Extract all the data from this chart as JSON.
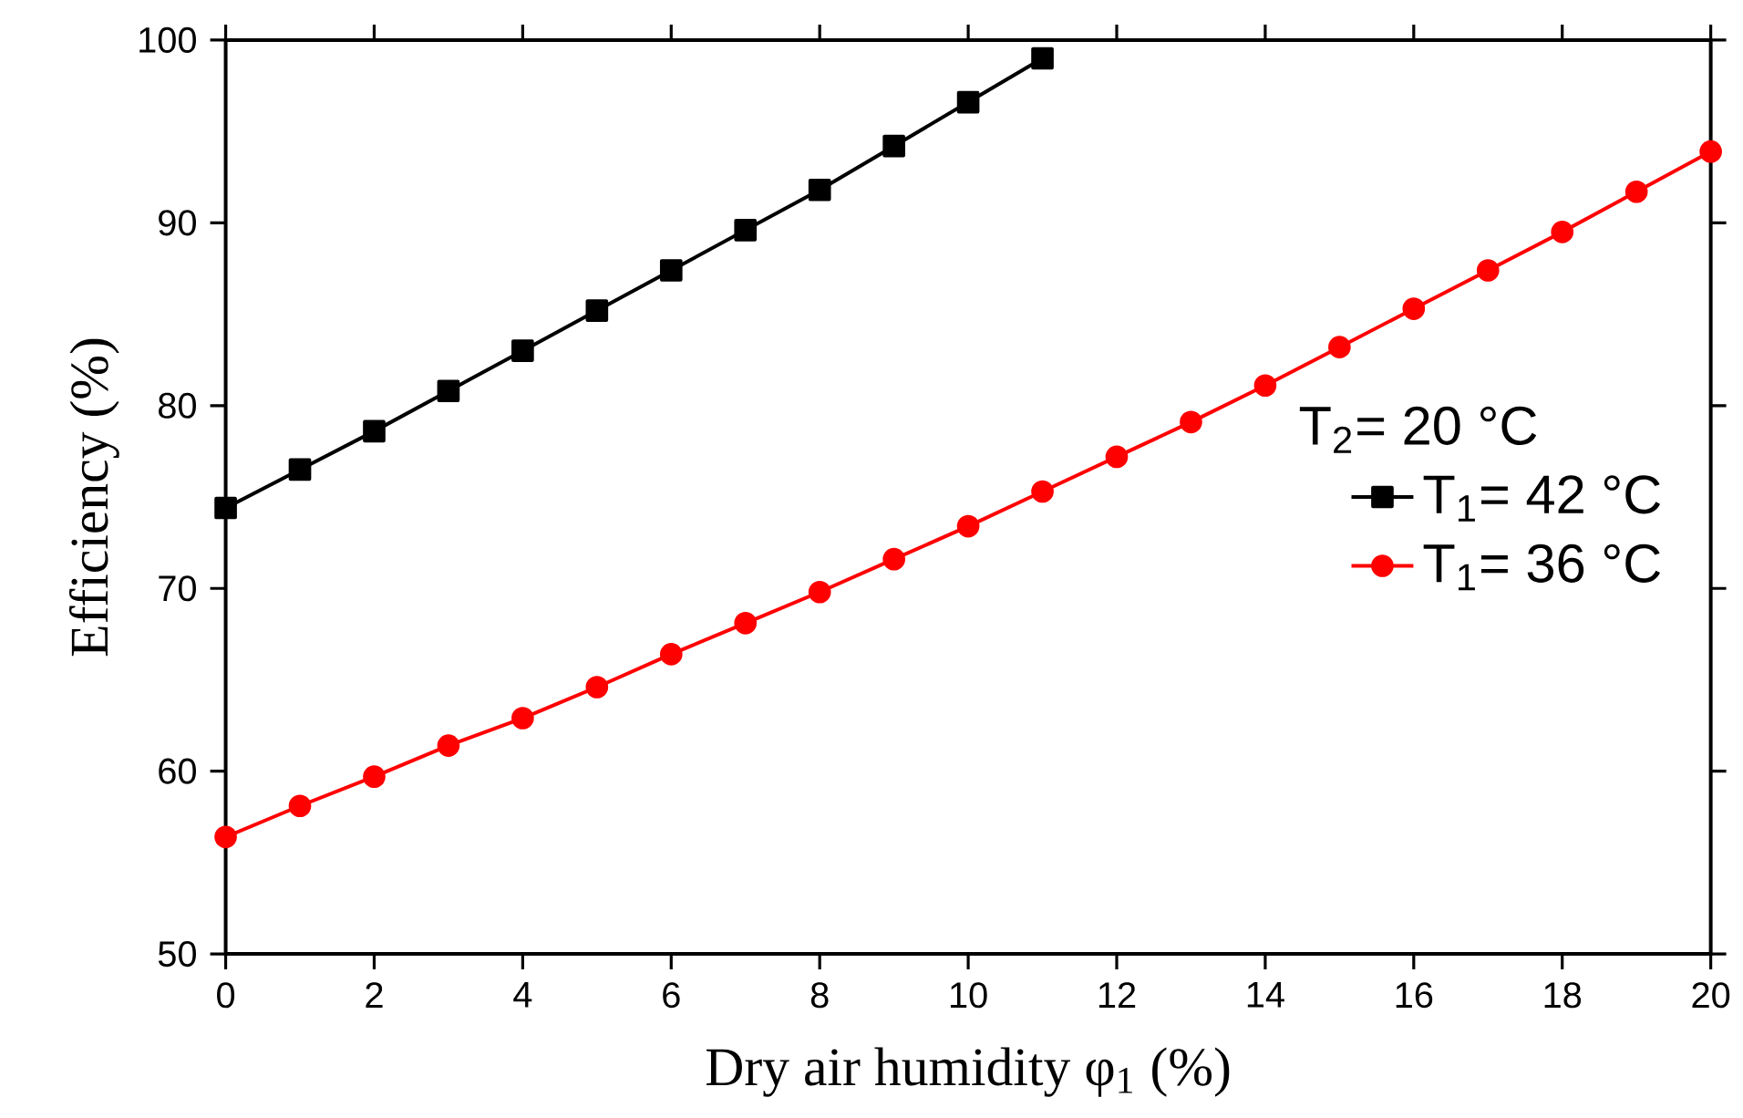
{
  "chart_data": {
    "type": "line",
    "xlabel": "Dry air humidity φ$_{1}$ (%)",
    "ylabel": "Efficiency (%)",
    "legend_title": "T$_{2}$= 20 °C",
    "xlim": [
      0,
      20
    ],
    "xticks": [
      0,
      2,
      4,
      6,
      8,
      10,
      12,
      14,
      16,
      18,
      20
    ],
    "ylim": [
      50,
      100
    ],
    "yticks": [
      50,
      60,
      70,
      80,
      90,
      100
    ],
    "legend": "right",
    "grid": false,
    "series": [
      {
        "name": "T$_{1}$= 42 °C",
        "color": "#000000",
        "marker": "square",
        "x": [
          0,
          1,
          2,
          3,
          4,
          5,
          6,
          7,
          8,
          9,
          10,
          11
        ],
        "values": [
          74.4,
          76.5,
          78.6,
          80.8,
          83.0,
          85.2,
          87.4,
          89.6,
          91.8,
          94.2,
          96.6,
          99.0
        ]
      },
      {
        "name": "T$_{1}$= 36 °C",
        "color": "#ff0000",
        "marker": "circle",
        "x": [
          0,
          1,
          2,
          3,
          4,
          5,
          6,
          7,
          8,
          9,
          10,
          11,
          12,
          13,
          14,
          15,
          16,
          17,
          18,
          19,
          20
        ],
        "values": [
          56.4,
          58.1,
          59.7,
          61.4,
          62.9,
          64.6,
          66.4,
          68.1,
          69.8,
          71.6,
          73.4,
          75.3,
          77.2,
          79.1,
          81.1,
          83.2,
          85.3,
          87.4,
          89.5,
          91.7,
          93.9
        ]
      }
    ]
  }
}
